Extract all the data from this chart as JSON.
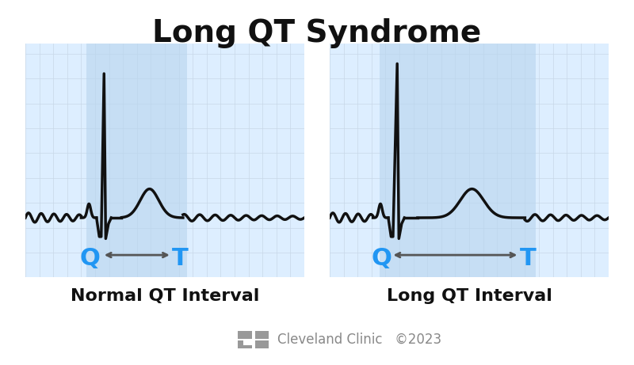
{
  "title": "Long QT Syndrome",
  "title_fontsize": 28,
  "title_fontweight": "bold",
  "bg_color": "#ffffff",
  "grid_color": "#c8d8e8",
  "grid_bg_color": "#ddeeff",
  "highlight_color": "#b8d4ee",
  "highlight_alpha": 0.6,
  "ecg_color": "#111111",
  "ecg_linewidth": 2.5,
  "qt_label_color": "#2196F3",
  "arrow_color": "#555555",
  "caption_left": "Normal QT Interval",
  "caption_right": "Long QT Interval",
  "caption_fontsize": 16,
  "caption_fontweight": "bold",
  "footer_text": "Cleveland Clinic   ©2023",
  "footer_fontsize": 12,
  "footer_color": "#888888"
}
